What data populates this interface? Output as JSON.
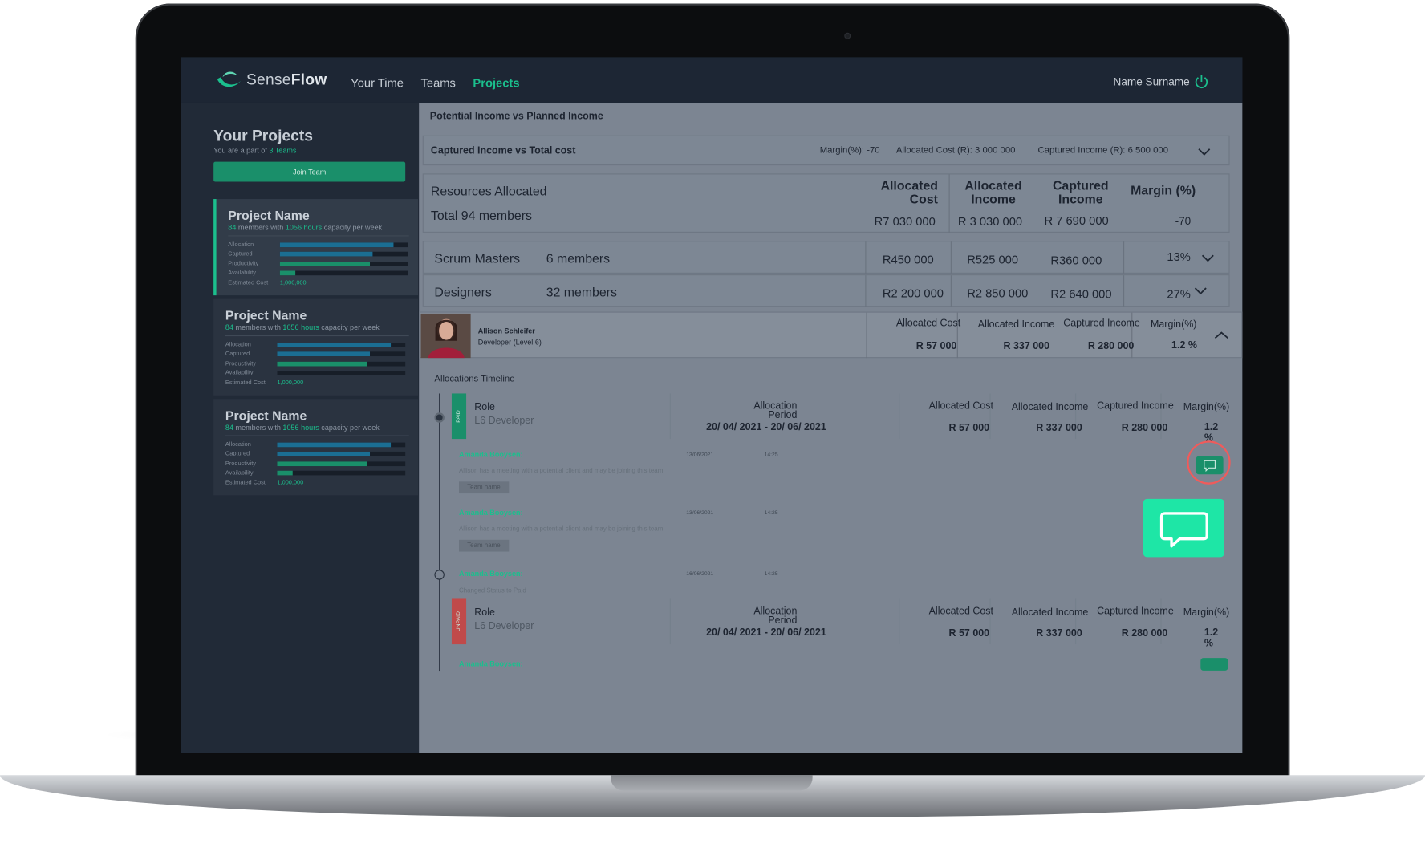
{
  "brand": {
    "name_light": "Sense",
    "name_bold": "Flow"
  },
  "nav": {
    "items": [
      "Your Time",
      "Teams",
      "Projects"
    ],
    "active": "Projects"
  },
  "user": {
    "name": "Name Surname"
  },
  "sidebar": {
    "title": "Your Projects",
    "subtitle_pre": "You are a part of ",
    "subtitle_link": "3 Teams",
    "join_label": "Join Team",
    "projects": [
      {
        "name": "Project Name",
        "members": "84",
        "mid": " members with ",
        "hours": "1056 hours",
        "tail": " capacity per week",
        "metrics": [
          {
            "label": "Allocation",
            "fill": 0.89,
            "color": "#1b6e93"
          },
          {
            "label": "Captured",
            "fill": 0.72,
            "color": "#1b6e93"
          },
          {
            "label": "Productivity",
            "fill": 0.7,
            "color": "#1a8f6a"
          },
          {
            "label": "Availability",
            "fill": 0.12,
            "color": "#1a8f6a"
          }
        ],
        "cost_label": "Estimated Cost",
        "cost": "1,000,000"
      },
      {
        "name": "Project Name",
        "members": "84",
        "mid": " members with ",
        "hours": "1056 hours",
        "tail": " capacity per week",
        "metrics": [
          {
            "label": "Allocation",
            "fill": 0.89,
            "color": "#1b6e93"
          },
          {
            "label": "Captured",
            "fill": 0.72,
            "color": "#1b6e93"
          },
          {
            "label": "Productivity",
            "fill": 0.7,
            "color": "#1a8f6a"
          },
          {
            "label": "Availability",
            "fill": 0.0,
            "color": "#1a8f6a"
          }
        ],
        "cost_label": "Estimated Cost",
        "cost": "1,000,000"
      },
      {
        "name": "Project Name",
        "members": "84",
        "mid": " members with ",
        "hours": "1056 hours",
        "tail": " capacity per week",
        "metrics": [
          {
            "label": "Allocation",
            "fill": 0.89,
            "color": "#1b6e93"
          },
          {
            "label": "Captured",
            "fill": 0.72,
            "color": "#1b6e93"
          },
          {
            "label": "Productivity",
            "fill": 0.7,
            "color": "#1a8f6a"
          },
          {
            "label": "Availability",
            "fill": 0.12,
            "color": "#1a8f6a"
          }
        ],
        "cost_label": "Estimated Cost",
        "cost": "1,000,000"
      }
    ]
  },
  "main": {
    "heading": "Potential Income vs Planned Income",
    "captured": {
      "title": "Captured Income vs Total cost",
      "margin": "Margin(%): -70",
      "alloc_cost": "Allocated Cost (R): 3 000 000",
      "captured_income": "Captured Income (R): 6 500 000"
    },
    "summary": {
      "resources": "Resources  Allocated",
      "total": "Total 94 members",
      "h_alloc_cost": "Allocated Cost",
      "h_alloc_income": "Allocated Income",
      "h_captured_income": "Captured Income",
      "h_margin": "Margin (%)",
      "v_alloc_cost": "R7 030 000",
      "v_alloc_income": "R 3 030 000",
      "v_captured_income": "R 7 690 000",
      "v_margin": "-70"
    },
    "groups": [
      {
        "name": "Scrum Masters",
        "members": "6 members",
        "alloc_cost": "R450 000",
        "alloc_income": "R525 000",
        "captured_income": "R360 000",
        "margin": "13%"
      },
      {
        "name": "Designers",
        "members": "32 members",
        "alloc_cost": "R2 200 000",
        "alloc_income": "R2 850 000",
        "captured_income": "R2 640 000",
        "margin": "27%"
      }
    ],
    "person": {
      "name": "Allison Schleifer",
      "role": "Developer (Level 6)",
      "h_alloc_cost": "Allocated Cost",
      "h_alloc_income": "Allocated Income",
      "h_captured_income": "Captured Income",
      "h_margin": "Margin(%)",
      "alloc_cost": "R 57 000",
      "alloc_income": "R 337 000",
      "captured_income": "R 280 000",
      "margin": "1.2 %"
    },
    "timeline": {
      "title": "Allocations Timeline",
      "entries": [
        {
          "status": "PAID",
          "role_label": "Role",
          "role": "L6 Developer",
          "period_label": "Allocation Period",
          "period": "20/ 04/ 2021 - 20/ 06/ 2021",
          "h_alloc_cost": "Allocated Cost",
          "h_alloc_income": "Allocated Income",
          "h_captured_income": "Captured Income",
          "h_margin": "Margin(%)",
          "alloc_cost": "R 57 000",
          "alloc_income": "R 337 000",
          "captured_income": "R 280 000",
          "margin": "1.2 %"
        },
        {
          "status": "UNPAID",
          "role_label": "Role",
          "role": "L6 Developer",
          "period_label": "Allocation Period",
          "period": "20/ 04/ 2021 - 20/ 06/ 2021",
          "h_alloc_cost": "Allocated Cost",
          "h_alloc_income": "Allocated Income",
          "h_captured_income": "Captured Income",
          "h_margin": "Margin(%)",
          "alloc_cost": "R 57 000",
          "alloc_income": "R 337 000",
          "captured_income": "R 280 000",
          "margin": "1.2 %"
        }
      ],
      "comments": [
        {
          "author": "Amanda Booysen:",
          "date": "13/06/2021",
          "time": "14:25",
          "text": "Allison has a meeting with a potential client and may be joining this team",
          "team": "Team name"
        },
        {
          "author": "Amanda Booysen:",
          "date": "13/06/2021",
          "time": "14:25",
          "text": "Allison has a meeting with a potential client and may be joining this team",
          "team": "Team name"
        },
        {
          "author": "Amanda Booysen:",
          "date": "16/06/2021",
          "time": "14:25",
          "text": "Changed Status to Paid"
        },
        {
          "author": "Amanda Booysen:"
        }
      ]
    }
  },
  "colors": {
    "accent": "#1bbf8d",
    "danger": "#d44d4d",
    "highlight": "#1ee6a6",
    "ring": "#f05b5b"
  }
}
